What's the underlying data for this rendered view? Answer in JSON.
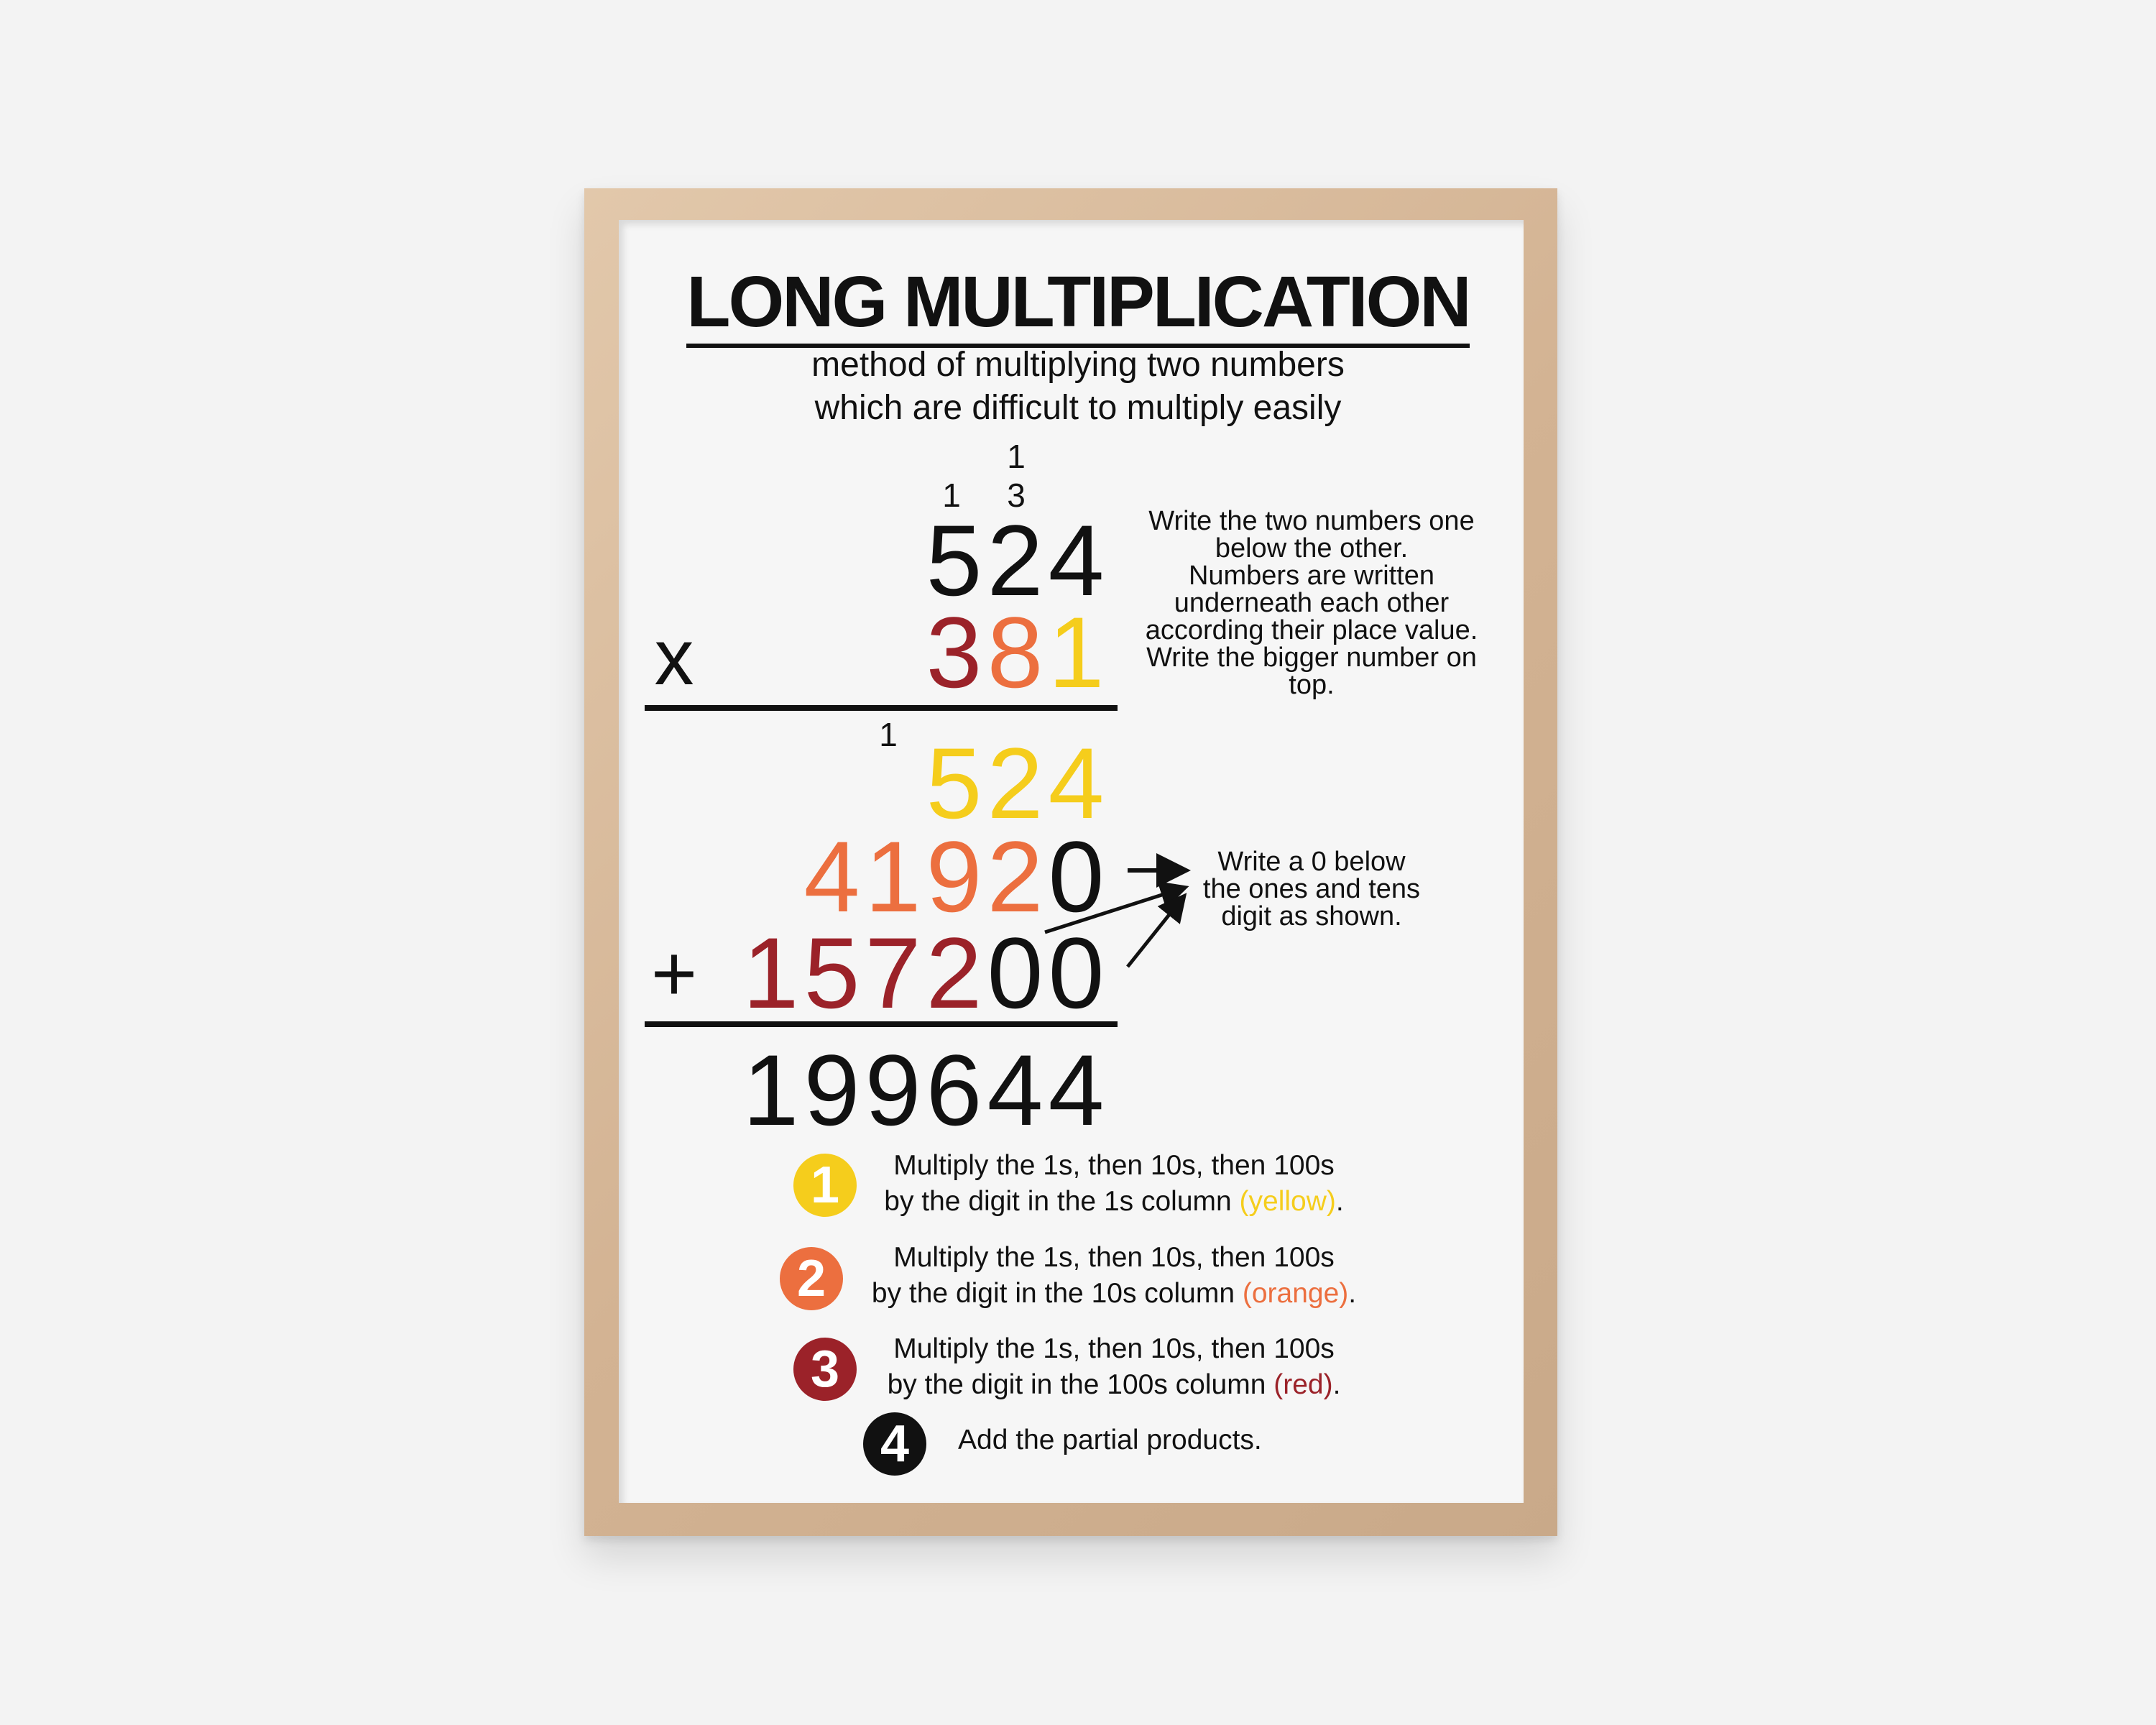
{
  "title": "LONG MULTIPLICATION",
  "subtitle": [
    "method of multiplying two numbers",
    "which are difficult to multiply easily"
  ],
  "colors": {
    "yellow": "#f5cd1c",
    "orange": "#ec6f3f",
    "red": "#9b2229",
    "black": "#111111",
    "frame": "#d8b998"
  },
  "carries": {
    "top_hundreds_1": "1",
    "top_tens_3": "3",
    "top_hundreds_above": "1",
    "partial_carry": "1"
  },
  "operators": {
    "times": "x",
    "plus": "+"
  },
  "rows": [
    {
      "id": "multiplicand",
      "digits": [
        "5",
        "2",
        "4"
      ],
      "colors": [
        "black",
        "black",
        "black"
      ]
    },
    {
      "id": "multiplier",
      "digits": [
        "3",
        "8",
        "1"
      ],
      "colors": [
        "red",
        "orange",
        "yellow"
      ]
    },
    {
      "id": "partial-1",
      "digits": [
        "5",
        "2",
        "4"
      ],
      "colors": [
        "yellow",
        "yellow",
        "yellow"
      ]
    },
    {
      "id": "partial-2",
      "digits": [
        "4",
        "1",
        "9",
        "2",
        "0"
      ],
      "colors": [
        "orange",
        "orange",
        "orange",
        "orange",
        "black"
      ]
    },
    {
      "id": "partial-3",
      "digits": [
        "1",
        "5",
        "7",
        "2",
        "0",
        "0"
      ],
      "colors": [
        "red",
        "red",
        "red",
        "red",
        "black",
        "black"
      ]
    },
    {
      "id": "result",
      "digits": [
        "1",
        "9",
        "9",
        "6",
        "4",
        "4"
      ],
      "colors": [
        "black",
        "black",
        "black",
        "black",
        "black",
        "black"
      ]
    }
  ],
  "note1": [
    "Write the two numbers one",
    "below the other.",
    "Numbers are written",
    "underneath each other",
    "according their place value.",
    "Write the bigger number on",
    "top."
  ],
  "note2": [
    "Write a 0 below",
    "the ones and tens",
    "digit as shown."
  ],
  "steps": [
    {
      "n": "1",
      "color": "yellow",
      "line1": "Multiply the 1s, then 10s, then 100s",
      "line2": "by the digit in the 1s column ",
      "hint": "(yellow)",
      "end": "."
    },
    {
      "n": "2",
      "color": "orange",
      "line1": "Multiply the 1s, then 10s, then 100s",
      "line2": "by the digit in the 10s column ",
      "hint": "(orange)",
      "end": "."
    },
    {
      "n": "3",
      "color": "red",
      "line1": "Multiply the 1s, then 10s, then 100s",
      "line2": "by the digit in the 100s column ",
      "hint": "(red)",
      "end": "."
    },
    {
      "n": "4",
      "color": "black",
      "text": "Add the partial products."
    }
  ]
}
